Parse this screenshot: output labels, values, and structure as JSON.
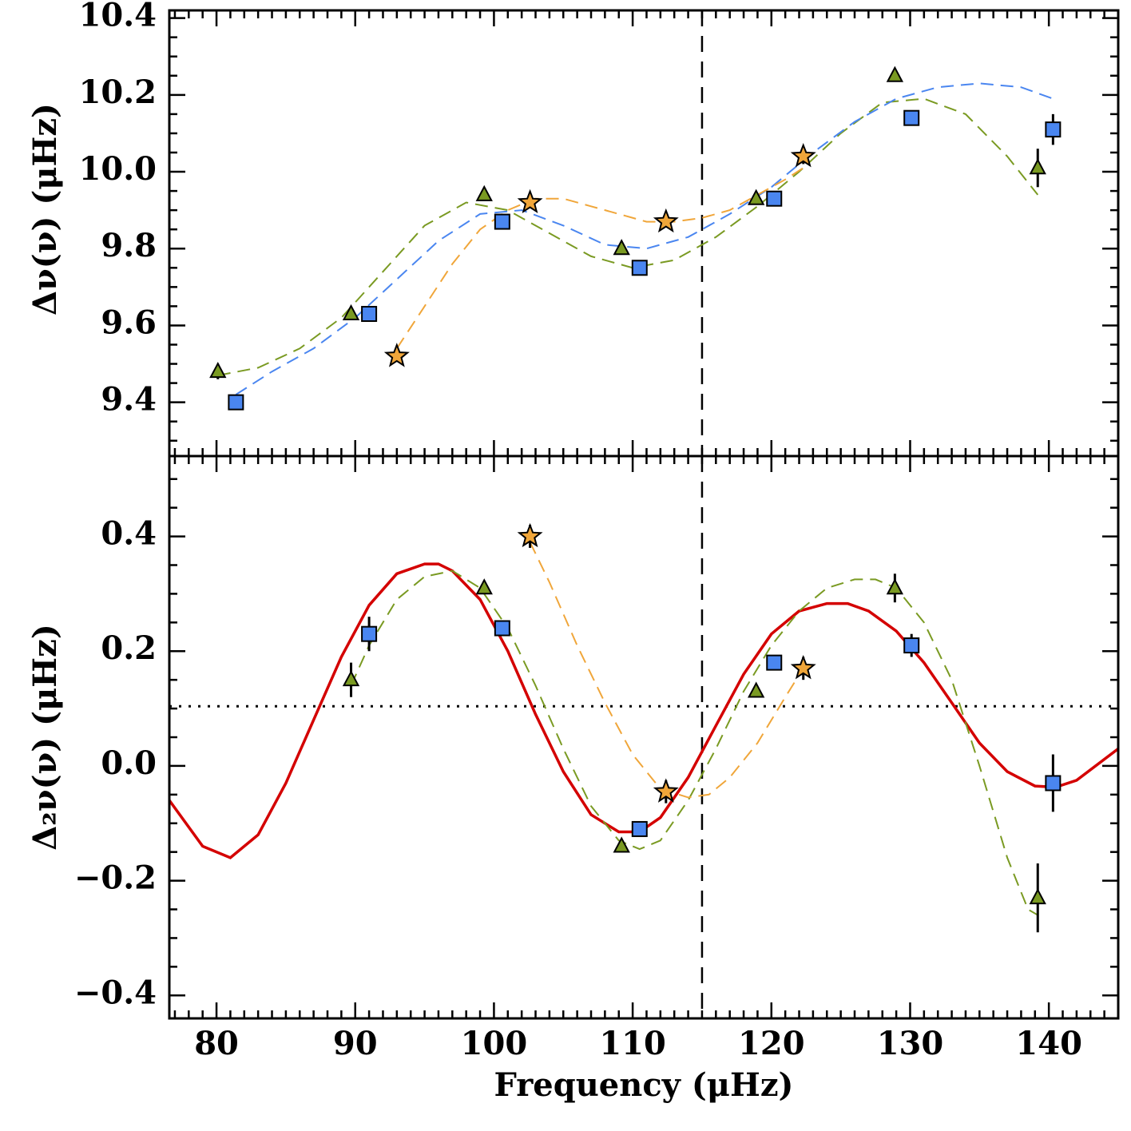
{
  "chart_data": {
    "type": "scatter",
    "xlabel": "Frequency (μHz)",
    "xlim": [
      76.6,
      145
    ],
    "x_major_ticks": [
      80,
      90,
      100,
      110,
      120,
      130,
      140
    ],
    "x_tick_labels": [
      "80",
      "90",
      "100",
      "110",
      "120",
      "130",
      "140"
    ],
    "x_minor_step": 1,
    "vertical_reference_line": 115,
    "colors": {
      "triangle": "#7a9a22",
      "square": "#4a86f0",
      "star": "#f0a63a",
      "fit": "#d40000"
    },
    "panels": [
      {
        "name": "top",
        "ylabel": "Δν(ν) (μHz)",
        "ylim": [
          9.26,
          10.42
        ],
        "y_major_ticks": [
          9.4,
          9.6,
          9.8,
          10.0,
          10.2,
          10.4
        ],
        "y_tick_labels": [
          "9.4",
          "9.6",
          "9.8",
          "10.0",
          "10.2",
          "10.4"
        ],
        "y_minor_step": 0.05,
        "series": [
          {
            "name": "triangles",
            "marker": "triangle",
            "x": [
              80.1,
              89.7,
              99.3,
              109.2,
              118.9,
              128.9,
              139.2
            ],
            "y": [
              9.48,
              9.63,
              9.94,
              9.8,
              9.93,
              10.25,
              10.01
            ],
            "err": [
              0.02,
              0.01,
              0.01,
              0.01,
              0.01,
              0.01,
              0.05
            ]
          },
          {
            "name": "squares",
            "marker": "square",
            "x": [
              81.4,
              91.0,
              100.6,
              110.5,
              120.2,
              130.1,
              140.3
            ],
            "y": [
              9.4,
              9.63,
              9.87,
              9.75,
              9.93,
              10.14,
              10.11
            ],
            "err": [
              0.02,
              0.01,
              0.01,
              0.01,
              0.01,
              0.01,
              0.04
            ]
          },
          {
            "name": "stars",
            "marker": "star",
            "x": [
              93.0,
              102.6,
              112.4,
              122.3
            ],
            "y": [
              9.52,
              9.92,
              9.87,
              10.04
            ],
            "err": [
              0.01,
              0.01,
              0.01,
              0.02
            ]
          }
        ],
        "curves": [
          {
            "name": "triangle-fit",
            "style": "dashed",
            "color_key": "triangle",
            "x": [
              80.1,
              83,
              86,
              89,
              92,
              95,
              98,
              101,
              104,
              107,
              110,
              113,
              116,
              119,
              122,
              125,
              128,
              131,
              134,
              137,
              139.2
            ],
            "y": [
              9.47,
              9.49,
              9.54,
              9.62,
              9.74,
              9.86,
              9.92,
              9.9,
              9.84,
              9.78,
              9.75,
              9.77,
              9.83,
              9.91,
              10.0,
              10.1,
              10.18,
              10.19,
              10.15,
              10.04,
              9.94
            ]
          },
          {
            "name": "square-fit",
            "style": "dashed",
            "color_key": "square",
            "x": [
              81.4,
              84,
              87,
              90,
              93,
              96,
              99,
              102,
              105,
              108,
              111,
              114,
              117,
              120,
              123,
              126,
              129,
              132,
              135,
              138,
              140.3
            ],
            "y": [
              9.42,
              9.48,
              9.54,
              9.62,
              9.72,
              9.82,
              9.89,
              9.9,
              9.86,
              9.81,
              9.8,
              9.83,
              9.89,
              9.96,
              10.05,
              10.13,
              10.19,
              10.22,
              10.23,
              10.22,
              10.19
            ]
          },
          {
            "name": "star-fit",
            "style": "dashed",
            "color_key": "star",
            "x": [
              93.0,
              95,
              97,
              99,
              101,
              103,
              105,
              107,
              109,
              111,
              113,
              115,
              117,
              119,
              121,
              122.3
            ],
            "y": [
              9.54,
              9.65,
              9.76,
              9.85,
              9.9,
              9.93,
              9.93,
              9.91,
              9.89,
              9.87,
              9.87,
              9.88,
              9.9,
              9.94,
              9.98,
              10.01
            ]
          }
        ]
      },
      {
        "name": "bottom",
        "ylabel": "Δ₂ν(ν) (μHz)",
        "ylim": [
          -0.44,
          0.54
        ],
        "y_major_ticks": [
          -0.4,
          -0.2,
          0.0,
          0.2,
          0.4
        ],
        "y_tick_labels": [
          "−0.4",
          "−0.2",
          "0.0",
          "0.2",
          "0.4"
        ],
        "y_minor_step": 0.05,
        "horizontal_reference_line": 0.104,
        "series": [
          {
            "name": "triangles",
            "marker": "triangle",
            "x": [
              89.7,
              99.3,
              109.2,
              118.9,
              128.9,
              139.2
            ],
            "y": [
              0.15,
              0.31,
              -0.14,
              0.13,
              0.31,
              -0.23
            ],
            "err": [
              0.03,
              0.01,
              0.01,
              0.01,
              0.025,
              0.06
            ]
          },
          {
            "name": "squares",
            "marker": "square",
            "x": [
              91.0,
              100.6,
              110.5,
              120.2,
              130.1,
              140.3
            ],
            "y": [
              0.23,
              0.24,
              -0.11,
              0.18,
              0.21,
              -0.03
            ],
            "err": [
              0.03,
              0.01,
              0.01,
              0.01,
              0.02,
              0.05
            ]
          },
          {
            "name": "stars",
            "marker": "star",
            "x": [
              102.6,
              112.4,
              122.3
            ],
            "y": [
              0.4,
              -0.045,
              0.17
            ],
            "err": [
              0.02,
              0.02,
              0.02
            ]
          }
        ],
        "curves": [
          {
            "name": "red-fit",
            "style": "solid",
            "color_key": "fit",
            "x": [
              76.6,
              79,
              81,
              83,
              85,
              87,
              89,
              91,
              93,
              95,
              96,
              97,
              99,
              101,
              103,
              105,
              107,
              109,
              110.5,
              112,
              114,
              116,
              118,
              120,
              122,
              124,
              125.5,
              127,
              129,
              131,
              133,
              135,
              137,
              139,
              140.5,
              142,
              145
            ],
            "y": [
              -0.06,
              -0.14,
              -0.16,
              -0.12,
              -0.03,
              0.08,
              0.19,
              0.28,
              0.335,
              0.352,
              0.352,
              0.34,
              0.29,
              0.2,
              0.09,
              -0.01,
              -0.085,
              -0.115,
              -0.115,
              -0.09,
              -0.02,
              0.07,
              0.16,
              0.23,
              0.27,
              0.283,
              0.283,
              0.27,
              0.235,
              0.18,
              0.11,
              0.04,
              -0.01,
              -0.035,
              -0.037,
              -0.025,
              0.03
            ]
          },
          {
            "name": "triangle-fit",
            "style": "dashed",
            "color_key": "triangle",
            "x": [
              89.7,
              91,
              93,
              95,
              97,
              99,
              101,
              103,
              105,
              107,
              109,
              110.5,
              112,
              114,
              116,
              118,
              120,
              122,
              124,
              126,
              127.5,
              129,
              131,
              133,
              135,
              137,
              138.5,
              139.2
            ],
            "y": [
              0.14,
              0.21,
              0.29,
              0.33,
              0.34,
              0.31,
              0.24,
              0.14,
              0.03,
              -0.07,
              -0.13,
              -0.145,
              -0.13,
              -0.06,
              0.03,
              0.13,
              0.21,
              0.27,
              0.31,
              0.325,
              0.325,
              0.31,
              0.25,
              0.15,
              0.0,
              -0.16,
              -0.25,
              -0.26
            ]
          },
          {
            "name": "star-fit",
            "style": "dashed",
            "color_key": "star",
            "x": [
              102.6,
              104,
              106,
              108,
              110,
              112,
              114,
              115.5,
              117,
              119,
              121,
              122.3
            ],
            "y": [
              0.39,
              0.32,
              0.21,
              0.11,
              0.02,
              -0.04,
              -0.055,
              -0.05,
              -0.02,
              0.04,
              0.12,
              0.17
            ]
          }
        ]
      }
    ]
  }
}
